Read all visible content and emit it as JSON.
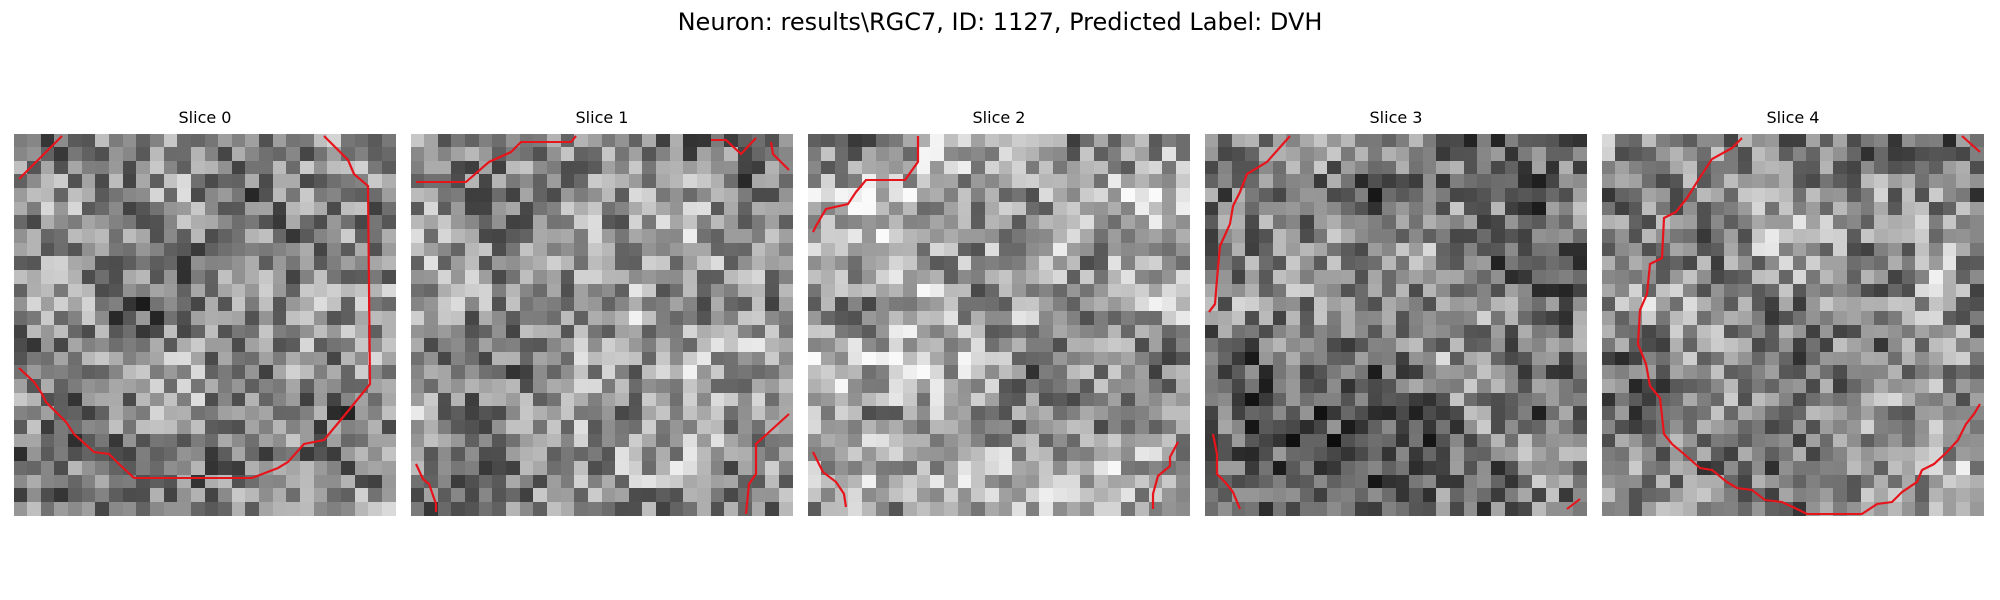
{
  "figure": {
    "title": "Neuron: results\\RGC7, ID: 1127, Predicted Label: DVH"
  },
  "contour_color": "#e8141c",
  "panels": [
    {
      "title": "Slice 0",
      "seed": 11,
      "brightness": 0.5
    },
    {
      "title": "Slice 1",
      "seed": 23,
      "brightness": 0.55
    },
    {
      "title": "Slice 2",
      "seed": 37,
      "brightness": 0.62
    },
    {
      "title": "Slice 3",
      "seed": 41,
      "brightness": 0.46
    },
    {
      "title": "Slice 4",
      "seed": 53,
      "brightness": 0.52
    }
  ]
}
